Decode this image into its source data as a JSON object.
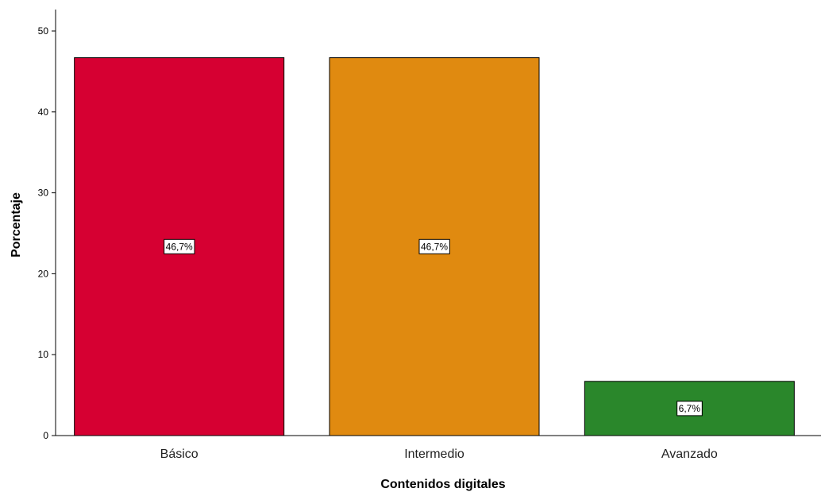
{
  "chart_data": {
    "type": "bar",
    "title": "",
    "xlabel": "Contenidos digitales",
    "ylabel": "Porcentaje",
    "categories": [
      "Básico",
      "Intermedio",
      "Avanzado"
    ],
    "values": [
      46.7,
      46.7,
      6.7
    ],
    "data_labels": [
      "46,7%",
      "46,7%",
      "6,7%"
    ],
    "colors": [
      "#d60032",
      "#e08a10",
      "#2a872b"
    ],
    "ylim": [
      0,
      52
    ],
    "yticks": [
      0,
      10,
      20,
      30,
      40,
      50
    ],
    "ytick_labels": [
      "0",
      "10",
      "20",
      "30",
      "40",
      "50"
    ],
    "grid": false,
    "legend": "none"
  }
}
